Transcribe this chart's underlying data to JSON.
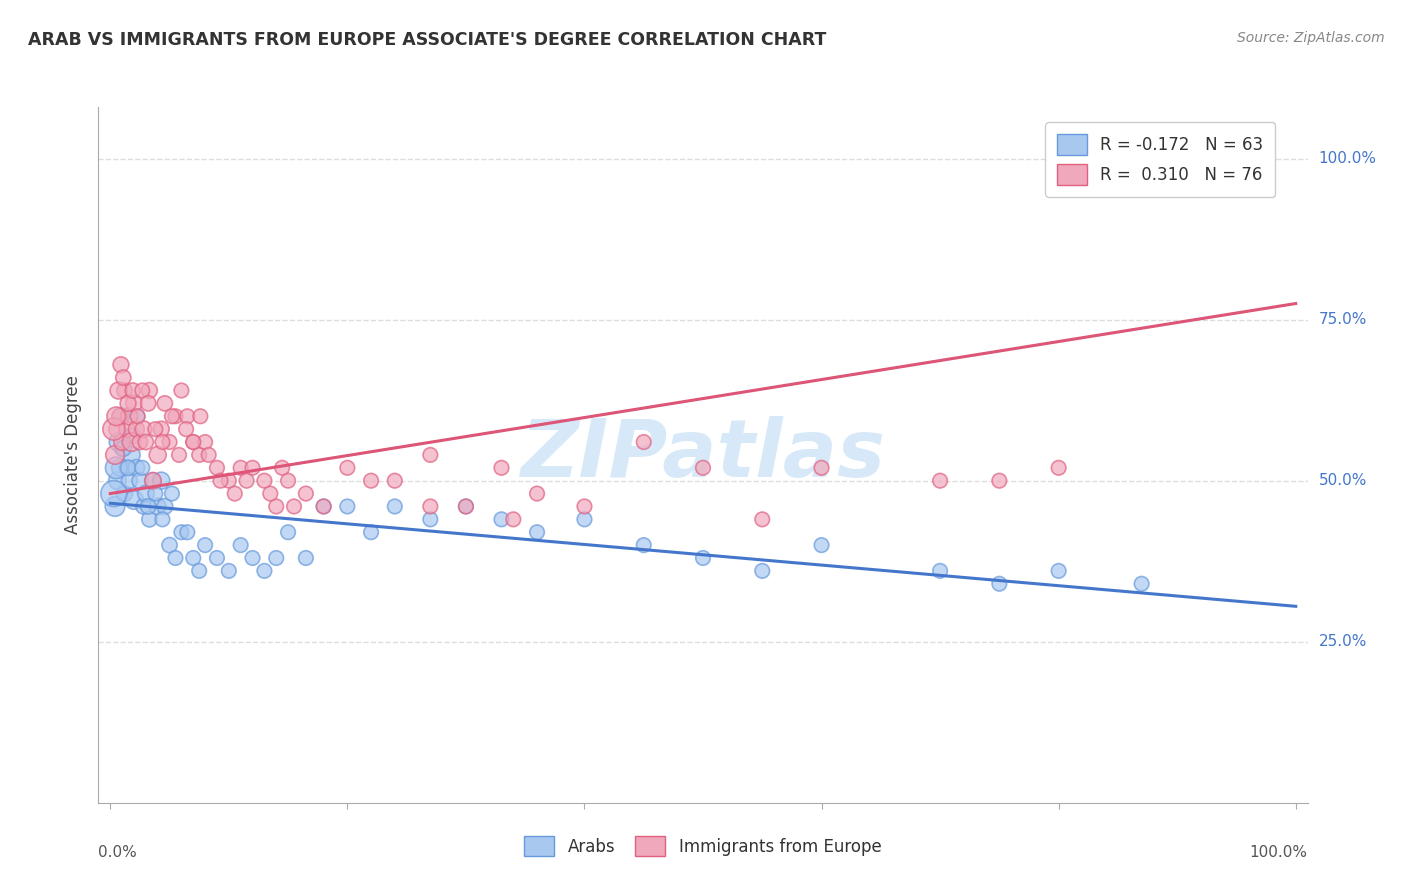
{
  "title": "ARAB VS IMMIGRANTS FROM EUROPE ASSOCIATE'S DEGREE CORRELATION CHART",
  "source": "Source: ZipAtlas.com",
  "ylabel": "Associate's Degree",
  "right_yticks": [
    "25.0%",
    "50.0%",
    "75.0%",
    "100.0%"
  ],
  "right_ytick_vals": [
    0.25,
    0.5,
    0.75,
    1.0
  ],
  "legend_blue_r": "R = -0.172",
  "legend_blue_n": "N = 63",
  "legend_pink_r": "R =  0.310",
  "legend_pink_n": "N = 76",
  "blue_fill": "#A8C8F0",
  "pink_fill": "#F0A8BC",
  "blue_edge": "#6699DD",
  "pink_edge": "#E06080",
  "blue_line": "#4477CC",
  "pink_line": "#DD5577",
  "watermark": "ZIPatlas",
  "blue_scatter_x": [
    0.004,
    0.006,
    0.008,
    0.01,
    0.012,
    0.014,
    0.016,
    0.018,
    0.02,
    0.022,
    0.025,
    0.028,
    0.03,
    0.033,
    0.036,
    0.04,
    0.043,
    0.046,
    0.05,
    0.055,
    0.06,
    0.065,
    0.07,
    0.075,
    0.08,
    0.09,
    0.1,
    0.11,
    0.12,
    0.13,
    0.14,
    0.15,
    0.165,
    0.18,
    0.2,
    0.22,
    0.24,
    0.27,
    0.3,
    0.33,
    0.36,
    0.4,
    0.45,
    0.5,
    0.55,
    0.6,
    0.7,
    0.75,
    0.8,
    0.87,
    0.003,
    0.005,
    0.007,
    0.009,
    0.011,
    0.015,
    0.019,
    0.023,
    0.027,
    0.032,
    0.038,
    0.044,
    0.052
  ],
  "blue_scatter_y": [
    0.46,
    0.5,
    0.52,
    0.55,
    0.48,
    0.52,
    0.5,
    0.54,
    0.47,
    0.52,
    0.5,
    0.46,
    0.48,
    0.44,
    0.5,
    0.46,
    0.5,
    0.46,
    0.4,
    0.38,
    0.42,
    0.42,
    0.38,
    0.36,
    0.4,
    0.38,
    0.36,
    0.4,
    0.38,
    0.36,
    0.38,
    0.42,
    0.38,
    0.46,
    0.46,
    0.42,
    0.46,
    0.44,
    0.46,
    0.44,
    0.42,
    0.44,
    0.4,
    0.38,
    0.36,
    0.4,
    0.36,
    0.34,
    0.36,
    0.34,
    0.48,
    0.52,
    0.56,
    0.6,
    0.55,
    0.52,
    0.57,
    0.6,
    0.52,
    0.46,
    0.48,
    0.44,
    0.48
  ],
  "blue_scatter_s": [
    200,
    160,
    140,
    120,
    130,
    120,
    130,
    150,
    180,
    140,
    130,
    120,
    140,
    120,
    130,
    140,
    150,
    130,
    120,
    110,
    110,
    110,
    110,
    110,
    110,
    110,
    110,
    110,
    110,
    110,
    110,
    110,
    110,
    110,
    110,
    110,
    110,
    110,
    110,
    110,
    110,
    110,
    110,
    110,
    110,
    110,
    110,
    110,
    110,
    110,
    350,
    240,
    180,
    150,
    130,
    120,
    120,
    110,
    110,
    120,
    110,
    110,
    110
  ],
  "pink_scatter_x": [
    0.004,
    0.006,
    0.008,
    0.01,
    0.012,
    0.014,
    0.016,
    0.018,
    0.02,
    0.022,
    0.025,
    0.028,
    0.03,
    0.033,
    0.036,
    0.04,
    0.043,
    0.046,
    0.05,
    0.055,
    0.06,
    0.065,
    0.07,
    0.075,
    0.08,
    0.09,
    0.1,
    0.11,
    0.12,
    0.13,
    0.14,
    0.15,
    0.165,
    0.18,
    0.2,
    0.22,
    0.24,
    0.27,
    0.3,
    0.33,
    0.36,
    0.4,
    0.45,
    0.5,
    0.55,
    0.6,
    0.7,
    0.75,
    0.8,
    0.003,
    0.005,
    0.007,
    0.009,
    0.011,
    0.015,
    0.019,
    0.023,
    0.027,
    0.032,
    0.038,
    0.044,
    0.052,
    0.058,
    0.064,
    0.07,
    0.076,
    0.083,
    0.093,
    0.105,
    0.115,
    0.135,
    0.145,
    0.155,
    0.27,
    0.34
  ],
  "pink_scatter_y": [
    0.54,
    0.58,
    0.6,
    0.56,
    0.64,
    0.58,
    0.6,
    0.56,
    0.62,
    0.58,
    0.56,
    0.58,
    0.56,
    0.64,
    0.5,
    0.54,
    0.58,
    0.62,
    0.56,
    0.6,
    0.64,
    0.6,
    0.56,
    0.54,
    0.56,
    0.52,
    0.5,
    0.52,
    0.52,
    0.5,
    0.46,
    0.5,
    0.48,
    0.46,
    0.52,
    0.5,
    0.5,
    0.54,
    0.46,
    0.52,
    0.48,
    0.46,
    0.56,
    0.52,
    0.44,
    0.52,
    0.5,
    0.5,
    0.52,
    0.58,
    0.6,
    0.64,
    0.68,
    0.66,
    0.62,
    0.64,
    0.6,
    0.64,
    0.62,
    0.58,
    0.56,
    0.6,
    0.54,
    0.58,
    0.56,
    0.6,
    0.54,
    0.5,
    0.48,
    0.5,
    0.48,
    0.52,
    0.46,
    0.46,
    0.44
  ],
  "pink_scatter_s": [
    180,
    150,
    130,
    140,
    120,
    130,
    150,
    180,
    140,
    130,
    120,
    140,
    120,
    130,
    140,
    150,
    130,
    120,
    110,
    110,
    110,
    110,
    110,
    110,
    110,
    110,
    110,
    110,
    110,
    110,
    110,
    110,
    110,
    110,
    110,
    110,
    110,
    110,
    110,
    110,
    110,
    110,
    110,
    110,
    110,
    110,
    110,
    110,
    110,
    250,
    180,
    150,
    130,
    120,
    130,
    120,
    110,
    110,
    120,
    110,
    110,
    110,
    110,
    110,
    110,
    110,
    110,
    110,
    110,
    110,
    110,
    110,
    110,
    110,
    110
  ],
  "blue_trend_x": [
    0.0,
    1.0
  ],
  "blue_trend_y": [
    0.465,
    0.305
  ],
  "pink_trend_x": [
    0.0,
    1.0
  ],
  "pink_trend_y": [
    0.48,
    0.775
  ],
  "xlim": [
    -0.01,
    1.01
  ],
  "ylim": [
    0.0,
    1.08
  ],
  "background_color": "#FFFFFF",
  "grid_color": "#DDDDDD",
  "grid_linestyle": "--"
}
